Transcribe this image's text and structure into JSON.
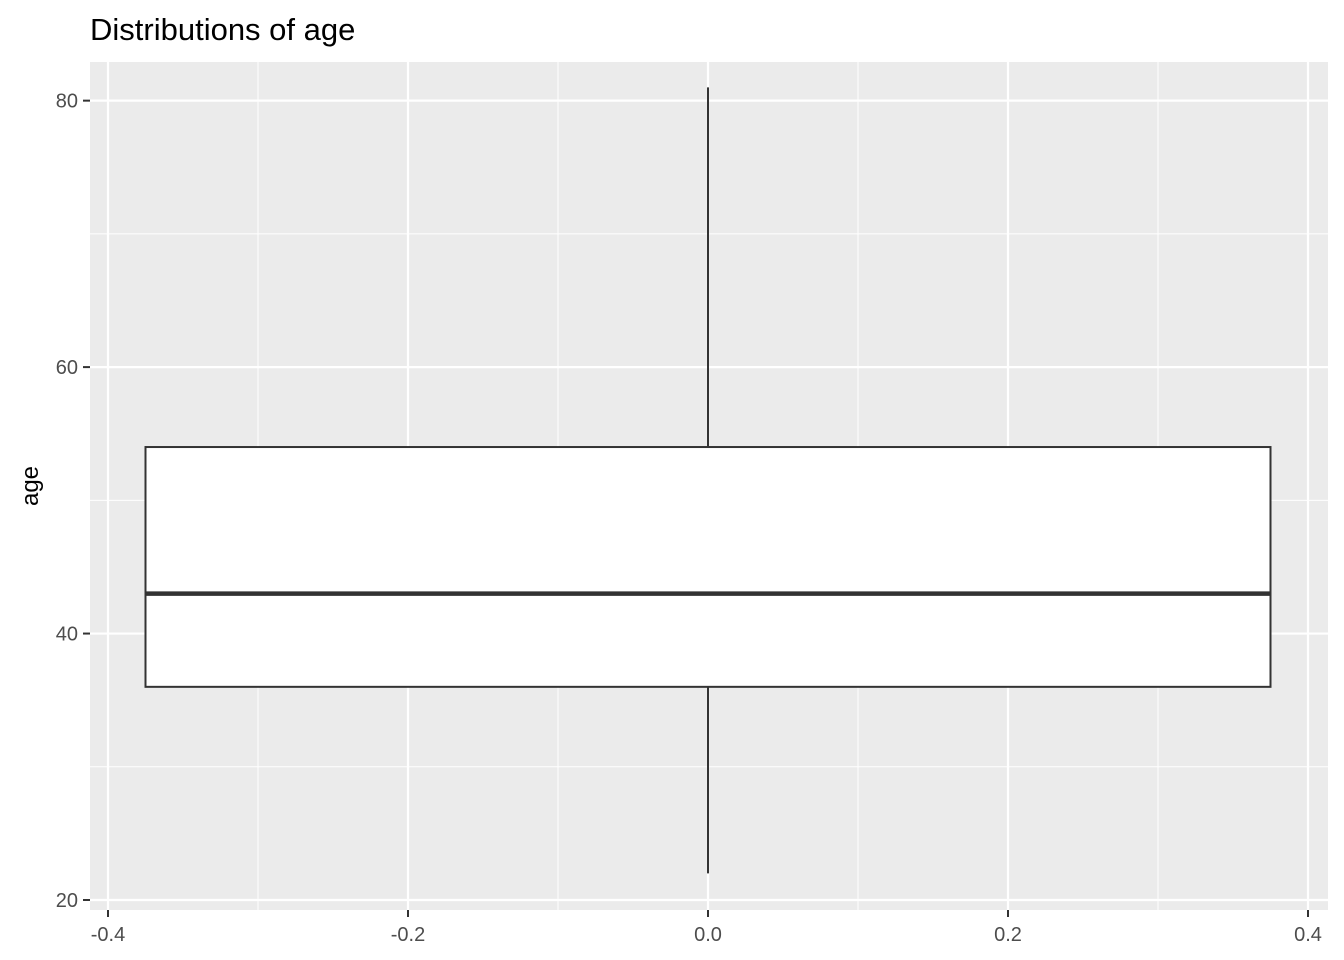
{
  "chart_data": {
    "type": "boxplot",
    "title": "Distributions of age",
    "xlabel": "",
    "ylabel": "age",
    "xlim": [
      -0.4,
      0.4
    ],
    "ylim": [
      20,
      82
    ],
    "x_ticks": [
      -0.4,
      -0.2,
      0.0,
      0.2,
      0.4
    ],
    "x_tick_labels": [
      "-0.4",
      "-0.2",
      "0.0",
      "0.2",
      "0.4"
    ],
    "y_ticks": [
      20,
      40,
      60,
      80
    ],
    "y_tick_labels": [
      "20",
      "40",
      "60",
      "80"
    ],
    "grid": true,
    "legend": "none",
    "box": {
      "x_center": 0.0,
      "x_range": [
        -0.375,
        0.375
      ],
      "whisker_low": 22,
      "q1": 36,
      "median": 43,
      "q3": 54,
      "whisker_high": 81
    },
    "colors": {
      "panel_background": "#ebebeb",
      "grid_major": "#ffffff",
      "box_fill": "#ffffff",
      "box_stroke": "#333333"
    }
  }
}
